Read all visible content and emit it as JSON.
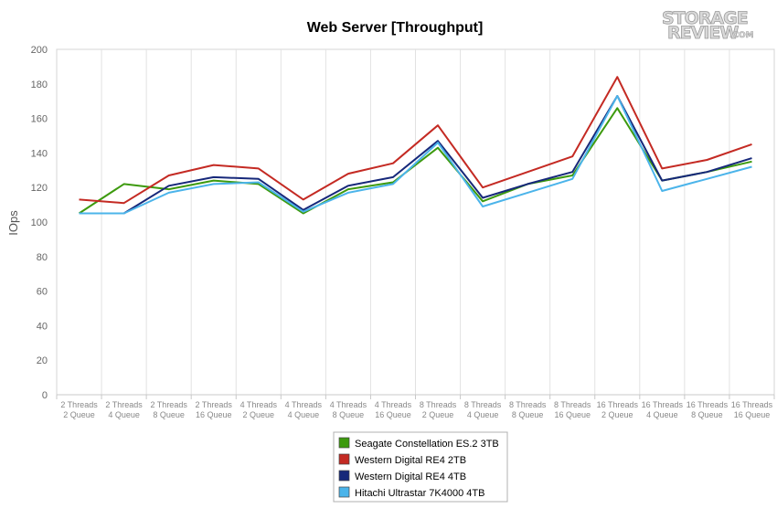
{
  "logo": {
    "line1": "STORAGE",
    "line2": "REVIEW",
    "suffix": ".COM"
  },
  "chart_data": {
    "type": "line",
    "title": "Web Server [Throughput]",
    "ylabel": "IOps",
    "xlabel": "",
    "ylim": [
      0,
      200
    ],
    "yticks": [
      0,
      20,
      40,
      60,
      80,
      100,
      120,
      140,
      160,
      180,
      200
    ],
    "grid": "vertical",
    "legend_position": "bottom-center",
    "categories": [
      [
        "2 Threads",
        "2 Queue"
      ],
      [
        "2 Threads",
        "4 Queue"
      ],
      [
        "2 Threads",
        "8 Queue"
      ],
      [
        "2 Threads",
        "16 Queue"
      ],
      [
        "4 Threads",
        "2 Queue"
      ],
      [
        "4 Threads",
        "4 Queue"
      ],
      [
        "4 Threads",
        "8 Queue"
      ],
      [
        "4 Threads",
        "16 Queue"
      ],
      [
        "8 Threads",
        "2 Queue"
      ],
      [
        "8 Threads",
        "4 Queue"
      ],
      [
        "8 Threads",
        "8 Queue"
      ],
      [
        "8 Threads",
        "16 Queue"
      ],
      [
        "16 Threads",
        "2 Queue"
      ],
      [
        "16 Threads",
        "4 Queue"
      ],
      [
        "16 Threads",
        "8 Queue"
      ],
      [
        "16 Threads",
        "16 Queue"
      ]
    ],
    "series": [
      {
        "name": "Seagate Constellation ES.2 3TB",
        "color": "#3d9a0e",
        "values": [
          105,
          122,
          119,
          124,
          122,
          105,
          119,
          123,
          143,
          112,
          122,
          127,
          166,
          124,
          129,
          135
        ]
      },
      {
        "name": "Western Digital RE4 2TB",
        "color": "#c42a23",
        "values": [
          113,
          111,
          127,
          133,
          131,
          113,
          128,
          134,
          156,
          120,
          129,
          138,
          184,
          131,
          136,
          145
        ]
      },
      {
        "name": "Western Digital RE4 4TB",
        "color": "#16287a",
        "values": [
          105,
          105,
          121,
          126,
          125,
          107,
          121,
          126,
          147,
          114,
          122,
          129,
          173,
          124,
          129,
          137
        ]
      },
      {
        "name": "Hitachi Ultrastar 7K4000 4TB",
        "color": "#4bb4ea",
        "values": [
          105,
          105,
          117,
          122,
          123,
          106,
          117,
          122,
          146,
          109,
          117,
          125,
          173,
          118,
          125,
          132
        ]
      }
    ]
  }
}
